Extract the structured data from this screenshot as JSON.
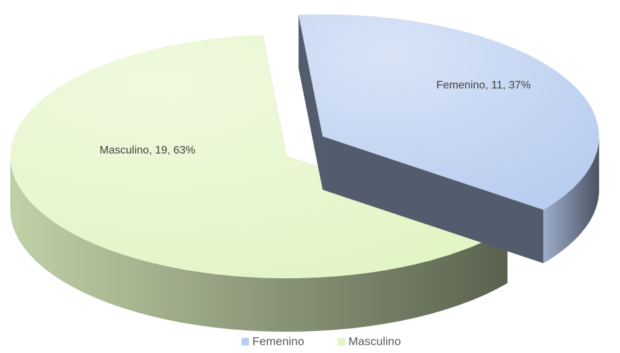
{
  "chart_data": {
    "type": "pie3d",
    "categories": [
      "Femenino",
      "Masculino"
    ],
    "values": [
      11,
      19
    ],
    "value_labels": [
      "Femenino, 11, 37%",
      "Masculino, 19, 63%"
    ],
    "colors": [
      "#b9cdf0",
      "#e2f5c4"
    ],
    "legend": "bottom"
  }
}
